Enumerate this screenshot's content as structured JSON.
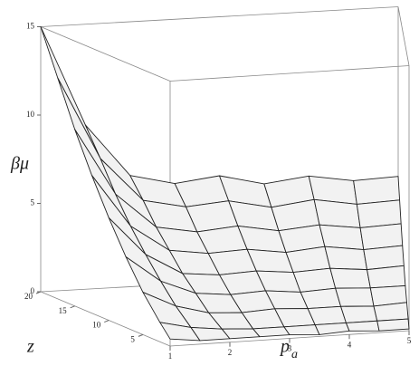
{
  "chart_data": {
    "type": "surface",
    "z_label": "βμ",
    "y_label": "z",
    "x_label": "p",
    "x_label_subscript": "a",
    "x": [
      1,
      1.5,
      2,
      2.5,
      3,
      3.5,
      4,
      4.5,
      5
    ],
    "y": [
      1,
      2.5,
      5,
      7.5,
      10,
      12.5,
      15,
      17.5,
      20
    ],
    "values": [
      [
        0.4,
        0.2,
        0.2,
        0.2,
        0.2,
        0.1,
        0.2,
        0.1,
        0.1
      ],
      [
        1.1,
        0.7,
        0.5,
        0.4,
        0.4,
        0.4,
        0.4,
        0.4,
        0.4
      ],
      [
        2.4,
        1.5,
        1.0,
        0.9,
        1.0,
        0.9,
        0.9,
        0.8,
        0.9
      ],
      [
        4,
        2.5,
        1.7,
        1.5,
        1.6,
        1.4,
        1.5,
        1.4,
        1.4
      ],
      [
        5.8,
        3.6,
        2.4,
        2.2,
        2.3,
        2.1,
        2.2,
        2.0,
        2.1
      ],
      [
        7.8,
        4.8,
        3.3,
        3.0,
        3.1,
        2.8,
        3.0,
        2.7,
        2.8
      ],
      [
        10,
        6.2,
        4.2,
        3.8,
        4.0,
        3.6,
        3.8,
        3.5,
        3.6
      ],
      [
        12.5,
        7.8,
        5.3,
        4.8,
        5.0,
        4.5,
        4.8,
        4.4,
        4.5
      ],
      [
        15,
        9.3,
        6.3,
        5.7,
        6.0,
        5.4,
        5.7,
        5.3,
        5.4
      ]
    ],
    "xlim": [
      1,
      5
    ],
    "ylim": [
      1,
      20
    ],
    "zlim": [
      0,
      15
    ],
    "xticks": [
      1,
      2,
      3,
      4,
      5
    ],
    "yticks": [
      5,
      10,
      15,
      20
    ],
    "zticks": [
      0,
      5,
      10,
      15
    ],
    "color": "#f2f2f2",
    "mesh_color": "#222222"
  }
}
